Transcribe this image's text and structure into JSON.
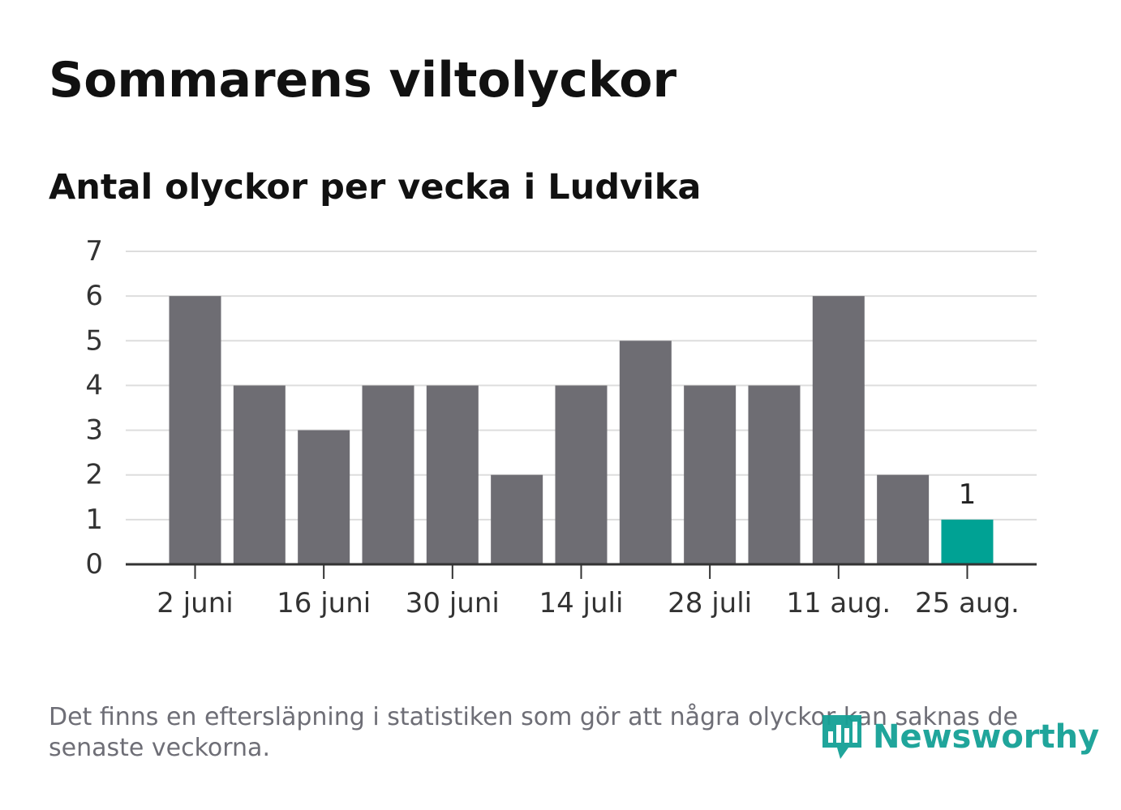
{
  "title": "Sommarens viltolyckor",
  "subtitle": "Antal olyckor per vecka i Ludvika",
  "footnote": "Det finns en eftersläpning i statistiken som gör att några olyckor kan saknas de senaste veckorna.",
  "logo_text": "Newsworthy",
  "colors": {
    "bar": "#6e6d73",
    "highlight": "#00a294",
    "grid": "#dddddd",
    "axis": "#333333",
    "logo": "#15a196"
  },
  "logo_icon": "bar-chart-pin-icon",
  "chart_data": {
    "type": "bar",
    "x_tick_labels": [
      "2 juni",
      "16 juni",
      "30 juni",
      "14 juli",
      "28 juli",
      "11 aug.",
      "25 aug."
    ],
    "y_ticks": [
      0,
      1,
      2,
      3,
      4,
      5,
      6,
      7
    ],
    "values": [
      6,
      4,
      3,
      4,
      4,
      2,
      4,
      5,
      4,
      4,
      6,
      2,
      1
    ],
    "highlight_index": 12,
    "data_labels": [
      {
        "index": 12,
        "text": "1"
      }
    ],
    "ylim": [
      0,
      7
    ],
    "grid": true,
    "xlabel": "",
    "ylabel": ""
  }
}
